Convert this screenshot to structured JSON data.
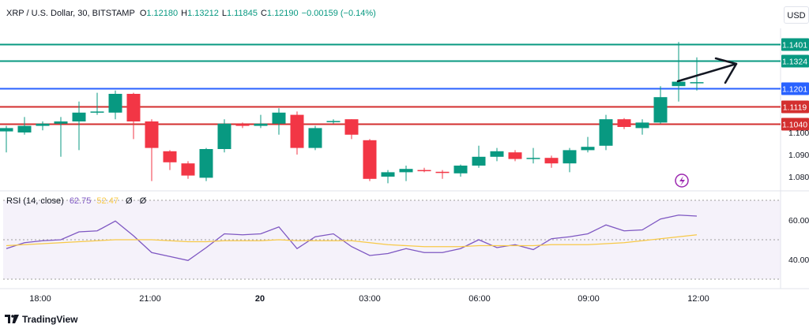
{
  "header": {
    "symbol": "XRP / U.S. Dollar, 30, BITSTAMP",
    "o_label": "O",
    "o_value": "1.12180",
    "h_label": "H",
    "h_value": "1.13212",
    "l_label": "L",
    "l_value": "1.11845",
    "c_label": "C",
    "c_value": "1.12190",
    "change": "−0.00159 (−0.14%)"
  },
  "currency_button": "USD",
  "rsi_legend": {
    "label": "RSI (14, close)",
    "rsi_value": "62.75",
    "ma_value": "52.47",
    "extra1": "Ø",
    "extra2": "Ø"
  },
  "footer": {
    "brand": "TradingView"
  },
  "colors": {
    "up": "#089981",
    "down": "#f23645",
    "hline_green": "#089981",
    "hline_red": "#d32f2f",
    "hline_blue": "#2962ff",
    "rsi": "#7e57c2",
    "rsi_ma": "#f7c948",
    "rsi_band": "#ede7f6"
  },
  "chart_data": {
    "type": "candlestick",
    "symbol": "XRP/USD",
    "interval": "30",
    "x_ticks": [
      "18:00",
      "21:00",
      "20",
      "03:00",
      "06:00",
      "09:00",
      "12:00"
    ],
    "y_ticks": [
      "1.1000",
      "1.0900",
      "1.0800"
    ],
    "price_range": [
      1.077,
      1.144
    ],
    "candles": [
      {
        "o": 1.1005,
        "h": 1.103,
        "l": 1.091,
        "c": 1.102
      },
      {
        "o": 1.1,
        "h": 1.107,
        "l": 1.099,
        "c": 1.103
      },
      {
        "o": 1.103,
        "h": 1.105,
        "l": 1.101,
        "c": 1.104
      },
      {
        "o": 1.104,
        "h": 1.107,
        "l": 1.089,
        "c": 1.105
      },
      {
        "o": 1.105,
        "h": 1.114,
        "l": 1.092,
        "c": 1.109
      },
      {
        "o": 1.109,
        "h": 1.118,
        "l": 1.108,
        "c": 1.1095
      },
      {
        "o": 1.109,
        "h": 1.119,
        "l": 1.106,
        "c": 1.1175
      },
      {
        "o": 1.1175,
        "h": 1.118,
        "l": 1.097,
        "c": 1.105
      },
      {
        "o": 1.105,
        "h": 1.106,
        "l": 1.078,
        "c": 1.093
      },
      {
        "o": 1.0915,
        "h": 1.092,
        "l": 1.083,
        "c": 1.0865
      },
      {
        "o": 1.086,
        "h": 1.087,
        "l": 1.079,
        "c": 1.0805
      },
      {
        "o": 1.0795,
        "h": 1.093,
        "l": 1.078,
        "c": 1.0925
      },
      {
        "o": 1.0925,
        "h": 1.106,
        "l": 1.091,
        "c": 1.104
      },
      {
        "o": 1.1038,
        "h": 1.1045,
        "l": 1.102,
        "c": 1.103
      },
      {
        "o": 1.103,
        "h": 1.108,
        "l": 1.102,
        "c": 1.104
      },
      {
        "o": 1.104,
        "h": 1.111,
        "l": 1.099,
        "c": 1.109
      },
      {
        "o": 1.108,
        "h": 1.1095,
        "l": 1.09,
        "c": 1.093
      },
      {
        "o": 1.093,
        "h": 1.103,
        "l": 1.092,
        "c": 1.102
      },
      {
        "o": 1.105,
        "h": 1.106,
        "l": 1.104,
        "c": 1.1052
      },
      {
        "o": 1.106,
        "h": 1.106,
        "l": 1.097,
        "c": 1.099
      },
      {
        "o": 1.0965,
        "h": 1.097,
        "l": 1.078,
        "c": 1.079
      },
      {
        "o": 1.08,
        "h": 1.083,
        "l": 1.077,
        "c": 1.082
      },
      {
        "o": 1.082,
        "h": 1.085,
        "l": 1.078,
        "c": 1.0835
      },
      {
        "o": 1.083,
        "h": 1.084,
        "l": 1.082,
        "c": 1.0825
      },
      {
        "o": 1.0822,
        "h": 1.083,
        "l": 1.079,
        "c": 1.082
      },
      {
        "o": 1.0815,
        "h": 1.0855,
        "l": 1.08,
        "c": 1.085
      },
      {
        "o": 1.085,
        "h": 1.094,
        "l": 1.084,
        "c": 1.089
      },
      {
        "o": 1.089,
        "h": 1.093,
        "l": 1.087,
        "c": 1.0915
      },
      {
        "o": 1.091,
        "h": 1.092,
        "l": 1.087,
        "c": 1.088
      },
      {
        "o": 1.088,
        "h": 1.093,
        "l": 1.086,
        "c": 1.0885
      },
      {
        "o": 1.0885,
        "h": 1.0895,
        "l": 1.084,
        "c": 1.086
      },
      {
        "o": 1.086,
        "h": 1.093,
        "l": 1.082,
        "c": 1.092
      },
      {
        "o": 1.092,
        "h": 1.098,
        "l": 1.091,
        "c": 1.0935
      },
      {
        "o": 1.094,
        "h": 1.108,
        "l": 1.092,
        "c": 1.106
      },
      {
        "o": 1.106,
        "h": 1.1065,
        "l": 1.1015,
        "c": 1.1025
      },
      {
        "o": 1.102,
        "h": 1.106,
        "l": 1.099,
        "c": 1.1045
      },
      {
        "o": 1.1045,
        "h": 1.121,
        "l": 1.104,
        "c": 1.116
      },
      {
        "o": 1.121,
        "h": 1.141,
        "l": 1.114,
        "c": 1.123
      },
      {
        "o": 1.1225,
        "h": 1.134,
        "l": 1.119,
        "c": 1.1228
      }
    ],
    "horizontal_lines": [
      {
        "price": 1.1401,
        "label": "1.1401",
        "color": "green"
      },
      {
        "price": 1.1324,
        "label": "1.1324",
        "color": "green"
      },
      {
        "price": 1.1201,
        "label": "1.1201",
        "color": "blue"
      },
      {
        "price": 1.1119,
        "label": "1.1119",
        "color": "red"
      },
      {
        "price": 1.104,
        "label": "1.1040",
        "color": "red"
      }
    ],
    "rsi": {
      "period": 14,
      "range": [
        30,
        70
      ],
      "y_ticks": [
        "60.00",
        "40.00"
      ],
      "values": [
        45.5,
        48.5,
        49.5,
        50,
        54,
        54.5,
        59.5,
        52,
        43.5,
        41.5,
        39.5,
        46,
        53,
        52.5,
        53,
        56.5,
        45.5,
        51.5,
        53,
        46.5,
        42,
        43,
        45.5,
        43.5,
        43.5,
        45.5,
        50,
        46,
        47.5,
        45,
        50.5,
        51.5,
        53,
        57.5,
        54.5,
        55,
        60.5,
        62.5,
        62
      ],
      "ma_values": [
        47,
        47.5,
        48,
        48.5,
        49,
        49.5,
        50,
        50,
        50,
        49.5,
        49,
        49,
        49.5,
        49.5,
        49.5,
        50,
        49.5,
        49.5,
        49.5,
        49.5,
        48.5,
        47.5,
        47,
        46.5,
        46.5,
        46.5,
        47,
        47,
        47,
        47,
        47.5,
        47.5,
        47.5,
        48,
        48.5,
        49.5,
        50.5,
        51.5,
        52.5
      ]
    }
  }
}
